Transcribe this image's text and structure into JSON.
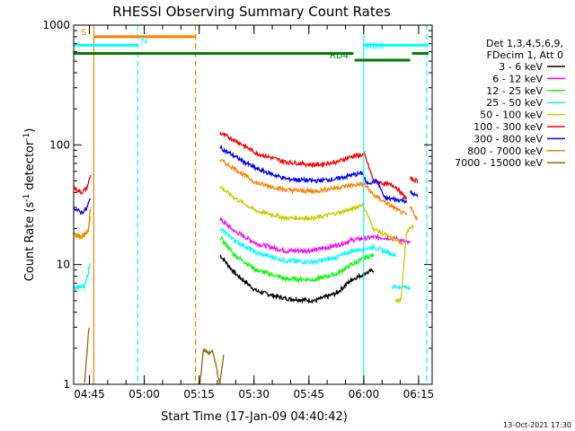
{
  "chart_data": {
    "type": "line",
    "title": "RHESSI Observing Summary Count Rates",
    "xlabel": "Start Time (17-Jan-09 04:40:42)",
    "ylabel_main": "Count Rate (s",
    "ylabel_sup1": "-1",
    "ylabel_mid": " detector",
    "ylabel_sup2": "-1",
    "ylabel_end": ")",
    "yscale": "log",
    "ylim": [
      1,
      1000
    ],
    "xlim_minutes": [
      0,
      98
    ],
    "x_ticks": [
      {
        "label": "04:45",
        "minute": 4.3
      },
      {
        "label": "05:00",
        "minute": 19.3
      },
      {
        "label": "05:15",
        "minute": 34.3
      },
      {
        "label": "05:30",
        "minute": 49.3
      },
      {
        "label": "05:45",
        "minute": 64.3
      },
      {
        "label": "06:00",
        "minute": 79.3
      },
      {
        "label": "06:15",
        "minute": 94.3
      }
    ],
    "y_ticks": [
      {
        "label": "1",
        "value": 1
      },
      {
        "label": "10",
        "value": 10
      },
      {
        "label": "100",
        "value": 100
      },
      {
        "label": "1000",
        "value": 1000
      }
    ],
    "footer_date": "13-Oct-2021 17:30",
    "legend_header": [
      "Det 1,3,4,5,6,9,",
      "FDecim 1, Att 0"
    ],
    "series": [
      {
        "name": "3 - 6 keV",
        "color": "#000000",
        "segments": [
          [
            [
              40,
              12
            ],
            [
              44,
              8.5
            ],
            [
              50,
              6
            ],
            [
              58,
              5.2
            ],
            [
              66,
              5.0
            ],
            [
              72,
              5.8
            ],
            [
              76,
              7.5
            ],
            [
              80,
              8.5
            ],
            [
              82,
              9.0
            ]
          ]
        ]
      },
      {
        "name": "6 - 12 keV",
        "color": "#ff00ff",
        "segments": [
          [
            [
              40,
              24
            ],
            [
              44,
              19
            ],
            [
              50,
              15
            ],
            [
              58,
              13
            ],
            [
              66,
              13.2
            ],
            [
              72,
              14.5
            ],
            [
              76,
              16
            ],
            [
              82,
              17
            ],
            [
              88,
              16.5
            ],
            [
              92,
              15
            ]
          ]
        ]
      },
      {
        "name": "12 - 25 keV",
        "color": "#00ff00",
        "segments": [
          [
            [
              40,
              17
            ],
            [
              44,
              12
            ],
            [
              50,
              9
            ],
            [
              58,
              7.6
            ],
            [
              66,
              7.5
            ],
            [
              72,
              8.4
            ],
            [
              76,
              10
            ],
            [
              80,
              11.5
            ],
            [
              82,
              12
            ]
          ]
        ]
      },
      {
        "name": "25 - 50 keV",
        "color": "#00ffff",
        "segments": [
          [
            [
              0,
              6.5
            ],
            [
              3,
              6.5
            ],
            [
              4.5,
              10
            ]
          ],
          [
            [
              40,
              20
            ],
            [
              44,
              16
            ],
            [
              50,
              12.5
            ],
            [
              58,
              10.8
            ],
            [
              66,
              10.5
            ],
            [
              72,
              11.5
            ],
            [
              76,
              13
            ],
            [
              82,
              14
            ],
            [
              88,
              12
            ]
          ],
          [
            [
              87,
              6.5
            ],
            [
              89,
              6.5
            ],
            [
              91,
              6.5
            ],
            [
              92,
              6.5
            ]
          ]
        ]
      },
      {
        "name": "50 - 100 keV",
        "color": "#cccc00",
        "segments": [
          [
            [
              0,
              18
            ],
            [
              2,
              17
            ],
            [
              4,
              19
            ],
            [
              4.6,
              26
            ]
          ],
          [
            [
              40,
              45
            ],
            [
              44,
              36
            ],
            [
              50,
              28
            ],
            [
              58,
              24.5
            ],
            [
              66,
              24.5
            ],
            [
              72,
              27
            ],
            [
              76,
              29
            ],
            [
              79,
              32
            ],
            [
              82,
              20
            ],
            [
              88,
              16
            ],
            [
              90,
              15
            ]
          ],
          [
            [
              88,
              5
            ],
            [
              89.5,
              5
            ],
            [
              91,
              19
            ],
            [
              93,
              21
            ]
          ]
        ]
      },
      {
        "name": "100 - 300 keV",
        "color": "#ff0000",
        "segments": [
          [
            [
              0,
              44
            ],
            [
              2,
              40
            ],
            [
              3.5,
              43
            ],
            [
              4.6,
              55
            ]
          ],
          [
            [
              40,
              125
            ],
            [
              44,
              110
            ],
            [
              50,
              85
            ],
            [
              58,
              72
            ],
            [
              66,
              68
            ],
            [
              72,
              72
            ],
            [
              76,
              80
            ],
            [
              79.5,
              83
            ],
            [
              82,
              50
            ],
            [
              88,
              45
            ],
            [
              91,
              35
            ]
          ],
          [
            [
              92,
              52
            ],
            [
              94,
              50
            ]
          ]
        ]
      },
      {
        "name": "300 - 800 keV",
        "color": "#0000ff",
        "segments": [
          [
            [
              0,
              30
            ],
            [
              2,
              27
            ],
            [
              3.5,
              29
            ],
            [
              4.6,
              36
            ]
          ],
          [
            [
              40,
              95
            ],
            [
              44,
              80
            ],
            [
              50,
              63
            ],
            [
              58,
              52
            ],
            [
              66,
              50
            ],
            [
              72,
              52
            ],
            [
              76,
              56
            ],
            [
              79,
              58
            ],
            [
              80,
              48
            ],
            [
              83,
              50
            ],
            [
              85,
              36
            ],
            [
              88,
              35
            ],
            [
              91,
              34
            ]
          ],
          [
            [
              92,
              40
            ],
            [
              94,
              37
            ]
          ]
        ]
      },
      {
        "name": "800 - 7000 keV",
        "color": "#ff8000",
        "segments": [
          [
            [
              0,
              18
            ],
            [
              2,
              17
            ],
            [
              4,
              19
            ],
            [
              4.6,
              30
            ]
          ],
          [
            [
              40,
              75
            ],
            [
              44,
              63
            ],
            [
              50,
              48
            ],
            [
              58,
              42
            ],
            [
              66,
              41
            ],
            [
              72,
              44
            ],
            [
              76,
              46
            ],
            [
              79.5,
              47
            ],
            [
              82,
              38
            ],
            [
              86,
              32
            ],
            [
              89,
              28
            ],
            [
              91,
              26
            ]
          ],
          [
            [
              92,
              30
            ],
            [
              94,
              24
            ]
          ]
        ]
      },
      {
        "name": "7000 - 15000 keV",
        "color": "#996600",
        "segments": [
          [
            [
              3,
              1
            ],
            [
              3.8,
              2.2
            ],
            [
              4.2,
              3.0
            ]
          ],
          [
            [
              34.5,
              1
            ],
            [
              35.5,
              2
            ],
            [
              36.8,
              1.8
            ],
            [
              38,
              1.9
            ],
            [
              40,
              1
            ],
            [
              41,
              1.8
            ]
          ]
        ]
      }
    ],
    "bars": [
      {
        "label": "S",
        "color": "#ff8000",
        "y_value": 800,
        "from": 5.5,
        "to": 33.5,
        "label_at": 2
      },
      {
        "label": "N",
        "color": "#00ffff",
        "y_value": 680,
        "from": 0,
        "to": 17.5,
        "label_at": 18.3,
        "label_y_value": 680
      },
      {
        "label": "",
        "color": "#008000",
        "y_value": 580,
        "from": 0,
        "to": 76.5
      },
      {
        "label": "RD0",
        "color": "#00ffff",
        "y_value": 680,
        "from": 79.3,
        "to": 97,
        "label_at": 79.8,
        "label_y_value": 610
      },
      {
        "label": "RD4",
        "color": "#008000",
        "y_value": 510,
        "from": 76.8,
        "to": 92,
        "label_at": 70,
        "label_y_value": 510
      },
      {
        "label": "",
        "color": "#008000",
        "y_value": 580,
        "from": 92.5,
        "to": 97
      }
    ],
    "vlines": [
      {
        "minute": 5.5,
        "color": "#ff8000",
        "style": "solid"
      },
      {
        "minute": 17.5,
        "color": "#00ffff",
        "style": "dashed"
      },
      {
        "minute": 33.3,
        "color": "#ff8000",
        "style": "dashed"
      },
      {
        "minute": 79.3,
        "color": "#00ffff",
        "style": "solid"
      },
      {
        "minute": 96.5,
        "color": "#00ffff",
        "style": "dashed"
      }
    ]
  }
}
